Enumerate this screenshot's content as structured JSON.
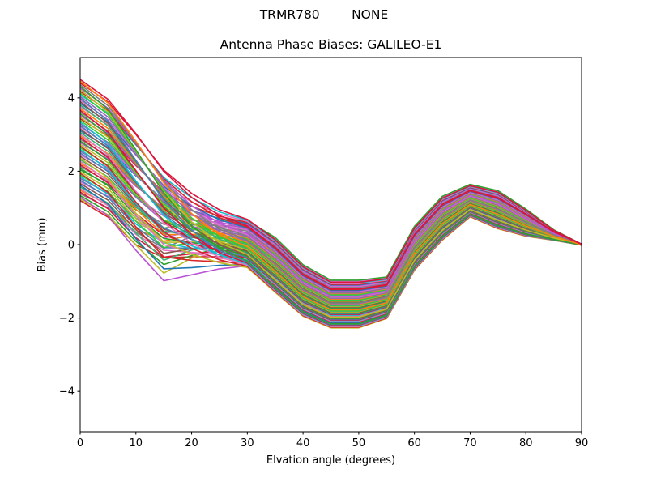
{
  "suptitle": "TRMR780        NONE",
  "figure": {
    "background": "#ffffff",
    "frame_color": "#000000"
  },
  "chart_data": {
    "type": "line",
    "title": "Antenna Phase Biases: GALILEO-E1",
    "xlabel": "Elvation angle (degrees)",
    "ylabel": "Bias (mm)",
    "xlim": [
      0,
      90
    ],
    "ylim": [
      -5.1,
      5.1
    ],
    "xticks": [
      0,
      10,
      20,
      30,
      40,
      50,
      60,
      70,
      80,
      90
    ],
    "xtick_labels": [
      "0",
      "10",
      "20",
      "30",
      "40",
      "50",
      "60",
      "70",
      "80",
      "90"
    ],
    "yticks": [
      -4,
      -2,
      0,
      2,
      4
    ],
    "ytick_labels": [
      "−4",
      "−2",
      "0",
      "2",
      "4"
    ],
    "grid": false,
    "legend": null,
    "line_width": 1.6,
    "n_series": 72,
    "x": [
      0,
      5,
      10,
      15,
      20,
      25,
      30,
      35,
      40,
      45,
      50,
      55,
      60,
      65,
      70,
      75,
      80,
      85,
      90
    ],
    "envelope": {
      "min": [
        1.2,
        0.75,
        0.0,
        -0.8,
        -0.95,
        -0.7,
        -0.63,
        -1.3,
        -1.95,
        -2.27,
        -2.27,
        -2.02,
        -0.7,
        0.12,
        0.76,
        0.43,
        0.23,
        0.04,
        -0.01
      ],
      "max": [
        4.5,
        3.96,
        3.03,
        2.12,
        1.48,
        1.0,
        0.75,
        0.2,
        -0.55,
        -0.97,
        -0.97,
        -0.88,
        0.5,
        1.32,
        1.64,
        1.47,
        0.97,
        0.48,
        0.01
      ]
    },
    "ensemble_model": {
      "description": "Each series value at x[k] = center[k] + A*left_profile[k] + B*band_profile[k] - r*dip_profile[k]; A spreads the fan at 0 deg, B the tight band offset, r the early dip near 15 deg.",
      "center": [
        2.85,
        2.35,
        1.5,
        0.8,
        0.45,
        0.2,
        0.05,
        -0.55,
        -1.25,
        -1.62,
        -1.62,
        -1.45,
        -0.1,
        0.72,
        1.2,
        0.95,
        0.6,
        0.26,
        0.0
      ],
      "left_profile": [
        1.0,
        0.95,
        0.85,
        0.6,
        0.32,
        0.13,
        0.03,
        0,
        0,
        0,
        0,
        0,
        0,
        0,
        0,
        0,
        0,
        0,
        0
      ],
      "band_profile": [
        0.0,
        0.1,
        0.3,
        0.5,
        0.75,
        0.92,
        1.0,
        1.15,
        1.08,
        1.0,
        1.0,
        0.87,
        0.92,
        0.92,
        0.68,
        0.8,
        0.57,
        0.22,
        0.02
      ],
      "dip_profile": [
        0.0,
        0.05,
        0.3,
        1.0,
        0.65,
        0.3,
        0.1,
        0,
        0,
        0,
        0,
        0,
        0,
        0,
        0,
        0,
        0,
        0,
        0
      ]
    },
    "palette": [
      "#1f77b4",
      "#ff7f0e",
      "#2ca02c",
      "#d62728",
      "#9467bd",
      "#8c564b",
      "#e377c2",
      "#7f7f7f",
      "#bcbd22",
      "#17becf",
      "#da70d6",
      "#3cb371",
      "#dc143c",
      "#ba55d3",
      "#32cd32",
      "#4682b4"
    ],
    "series": [
      {
        "A": -1.65,
        "B": -0.339,
        "r": 0,
        "c": 3
      },
      {
        "A": -1.604,
        "B": 0.229,
        "r": 0.73,
        "c": 8
      },
      {
        "A": -1.557,
        "B": -0.522,
        "r": 0.59,
        "c": 13
      },
      {
        "A": -1.511,
        "B": 0.046,
        "r": 0.46,
        "c": 2
      },
      {
        "A": -1.464,
        "B": 0.613,
        "r": 0.33,
        "c": 7
      },
      {
        "A": -1.418,
        "B": -0.137,
        "r": 0.22,
        "c": 12
      },
      {
        "A": -1.371,
        "B": 0.43,
        "r": 0.1,
        "c": 1
      },
      {
        "A": -1.325,
        "B": -0.32,
        "r": 0,
        "c": 6
      },
      {
        "A": -1.278,
        "B": 0.247,
        "r": 0.58,
        "c": 11
      },
      {
        "A": -1.232,
        "B": -0.504,
        "r": 0.47,
        "c": 0
      },
      {
        "A": -1.185,
        "B": 0.064,
        "r": 0.36,
        "c": 5
      },
      {
        "A": -1.139,
        "B": 0.632,
        "r": 0.26,
        "c": 10
      },
      {
        "A": -1.092,
        "B": -0.119,
        "r": 0.17,
        "c": 15
      },
      {
        "A": -1.046,
        "B": 0.449,
        "r": 0.08,
        "c": 4
      },
      {
        "A": -0.999,
        "B": -0.302,
        "r": 0,
        "c": 9
      },
      {
        "A": -0.953,
        "B": 0.266,
        "r": 0.44,
        "c": 14
      },
      {
        "A": -0.906,
        "B": -0.485,
        "r": 0.35,
        "c": 3
      },
      {
        "A": -0.86,
        "B": 0.082,
        "r": 0.26,
        "c": 8
      },
      {
        "A": -0.813,
        "B": 0.65,
        "r": 0.19,
        "c": 2
      },
      {
        "A": -0.767,
        "B": -0.101,
        "r": 0.12,
        "c": 2
      },
      {
        "A": -0.72,
        "B": 0.467,
        "r": 0.05,
        "c": 7
      },
      {
        "A": -0.674,
        "B": -0.284,
        "r": 0,
        "c": 12
      },
      {
        "A": -0.627,
        "B": 0.284,
        "r": 0.29,
        "c": 1
      },
      {
        "A": -0.581,
        "B": -0.467,
        "r": 0.22,
        "c": 6
      },
      {
        "A": -0.535,
        "B": 0.101,
        "r": 0.16,
        "c": 11
      },
      {
        "A": -0.488,
        "B": -0.65,
        "r": 0.11,
        "c": 8
      },
      {
        "A": -0.442,
        "B": -0.082,
        "r": 0.07,
        "c": 5
      },
      {
        "A": -0.395,
        "B": 0.485,
        "r": 0.03,
        "c": 10
      },
      {
        "A": -0.349,
        "B": -0.266,
        "r": 0,
        "c": 15
      },
      {
        "A": -0.302,
        "B": 0.302,
        "r": 0.14,
        "c": 4
      },
      {
        "A": -0.256,
        "B": -0.449,
        "r": 0.1,
        "c": 9
      },
      {
        "A": -0.209,
        "B": 0.119,
        "r": 0.06,
        "c": 14
      },
      {
        "A": -0.163,
        "B": -0.632,
        "r": 0.04,
        "c": 3
      },
      {
        "A": -0.116,
        "B": -0.064,
        "r": 0.02,
        "c": 8
      },
      {
        "A": -0.07,
        "B": 0.504,
        "r": 0.01,
        "c": 13
      },
      {
        "A": -0.023,
        "B": -0.247,
        "r": 0,
        "c": 2
      },
      {
        "A": 0.023,
        "B": 0.32,
        "r": 0,
        "c": 7
      },
      {
        "A": 0.07,
        "B": -0.43,
        "r": 0,
        "c": 12
      },
      {
        "A": 0.116,
        "B": 0.137,
        "r": 0,
        "c": 1
      },
      {
        "A": 0.163,
        "B": -0.613,
        "r": 0,
        "c": 6
      },
      {
        "A": 0.209,
        "B": -0.046,
        "r": 0,
        "c": 11
      },
      {
        "A": 0.256,
        "B": 0.522,
        "r": 0,
        "c": 0
      },
      {
        "A": 0.302,
        "B": -0.229,
        "r": 0,
        "c": 5
      },
      {
        "A": 0.349,
        "B": 0.339,
        "r": 0,
        "c": 10
      },
      {
        "A": 0.395,
        "B": -0.412,
        "r": 0,
        "c": 15
      },
      {
        "A": 0.442,
        "B": 0.156,
        "r": 0,
        "c": 4
      },
      {
        "A": 0.488,
        "B": -0.595,
        "r": 0,
        "c": 9
      },
      {
        "A": 0.535,
        "B": -0.027,
        "r": 0,
        "c": 14
      },
      {
        "A": 0.581,
        "B": 0.54,
        "r": 0,
        "c": 3
      },
      {
        "A": 0.627,
        "B": -0.211,
        "r": 0,
        "c": 8
      },
      {
        "A": 0.674,
        "B": 0.357,
        "r": 0,
        "c": 13
      },
      {
        "A": 0.72,
        "B": -0.394,
        "r": 0,
        "c": 2
      },
      {
        "A": 0.767,
        "B": 0.174,
        "r": 0,
        "c": 7
      },
      {
        "A": 0.813,
        "B": -0.577,
        "r": 0,
        "c": 12
      },
      {
        "A": 0.86,
        "B": -0.009,
        "r": 0,
        "c": 1
      },
      {
        "A": 0.906,
        "B": 0.558,
        "r": 0,
        "c": 6
      },
      {
        "A": 0.953,
        "B": -0.192,
        "r": 0,
        "c": 11
      },
      {
        "A": 0.999,
        "B": 0.375,
        "r": 0,
        "c": 0
      },
      {
        "A": 1.046,
        "B": -0.375,
        "r": 0,
        "c": 5
      },
      {
        "A": 1.092,
        "B": 0.192,
        "r": 0,
        "c": 10
      },
      {
        "A": 1.139,
        "B": -0.558,
        "r": 0,
        "c": 15
      },
      {
        "A": 1.185,
        "B": 0.009,
        "r": 0,
        "c": 4
      },
      {
        "A": 1.232,
        "B": 0.577,
        "r": 0,
        "c": 9
      },
      {
        "A": 1.278,
        "B": -0.174,
        "r": 0,
        "c": 14
      },
      {
        "A": 1.325,
        "B": 0.394,
        "r": 0,
        "c": 3
      },
      {
        "A": 1.371,
        "B": -0.357,
        "r": 0,
        "c": 8
      },
      {
        "A": 1.418,
        "B": 0.211,
        "r": 0,
        "c": 13
      },
      {
        "A": 1.464,
        "B": -0.54,
        "r": 0,
        "c": 2
      },
      {
        "A": 1.511,
        "B": 0.027,
        "r": 0,
        "c": 7
      },
      {
        "A": 1.557,
        "B": 0.595,
        "r": 0,
        "c": 12
      },
      {
        "A": 1.604,
        "B": -0.156,
        "r": 0,
        "c": 1
      },
      {
        "A": 1.65,
        "B": 0.412,
        "r": 0,
        "c": 12
      }
    ]
  }
}
